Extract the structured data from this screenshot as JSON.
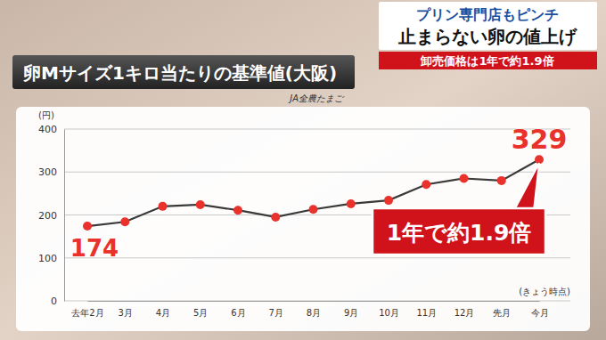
{
  "chart_data": {
    "type": "line",
    "title": "卵Mサイズ1キロ当たりの基準値(大阪)",
    "subtitle": "JA全農たまご",
    "headline": [
      "プリン専門店もピンチ",
      "止まらない卵の値上げ"
    ],
    "banner": "卸売価格は1年で約1.9倍",
    "y_label": "(円)",
    "x_note": "(きょう時点)",
    "annotation": "1年で約1.9倍",
    "categories": [
      "去年2月",
      "3月",
      "4月",
      "5月",
      "6月",
      "7月",
      "8月",
      "9月",
      "10月",
      "11月",
      "12月",
      "先月",
      "今月"
    ],
    "values": [
      174,
      184,
      220,
      224,
      211,
      195,
      213,
      226,
      234,
      271,
      285,
      280,
      329
    ],
    "value_labels": [
      "174",
      null,
      null,
      null,
      null,
      null,
      null,
      null,
      null,
      null,
      null,
      null,
      "329"
    ],
    "data_labels": true,
    "color": "#e8322b",
    "marker": "circle",
    "ylim": [
      0,
      400
    ],
    "yticks": [
      0,
      100,
      200,
      300,
      400
    ],
    "grid": true
  }
}
